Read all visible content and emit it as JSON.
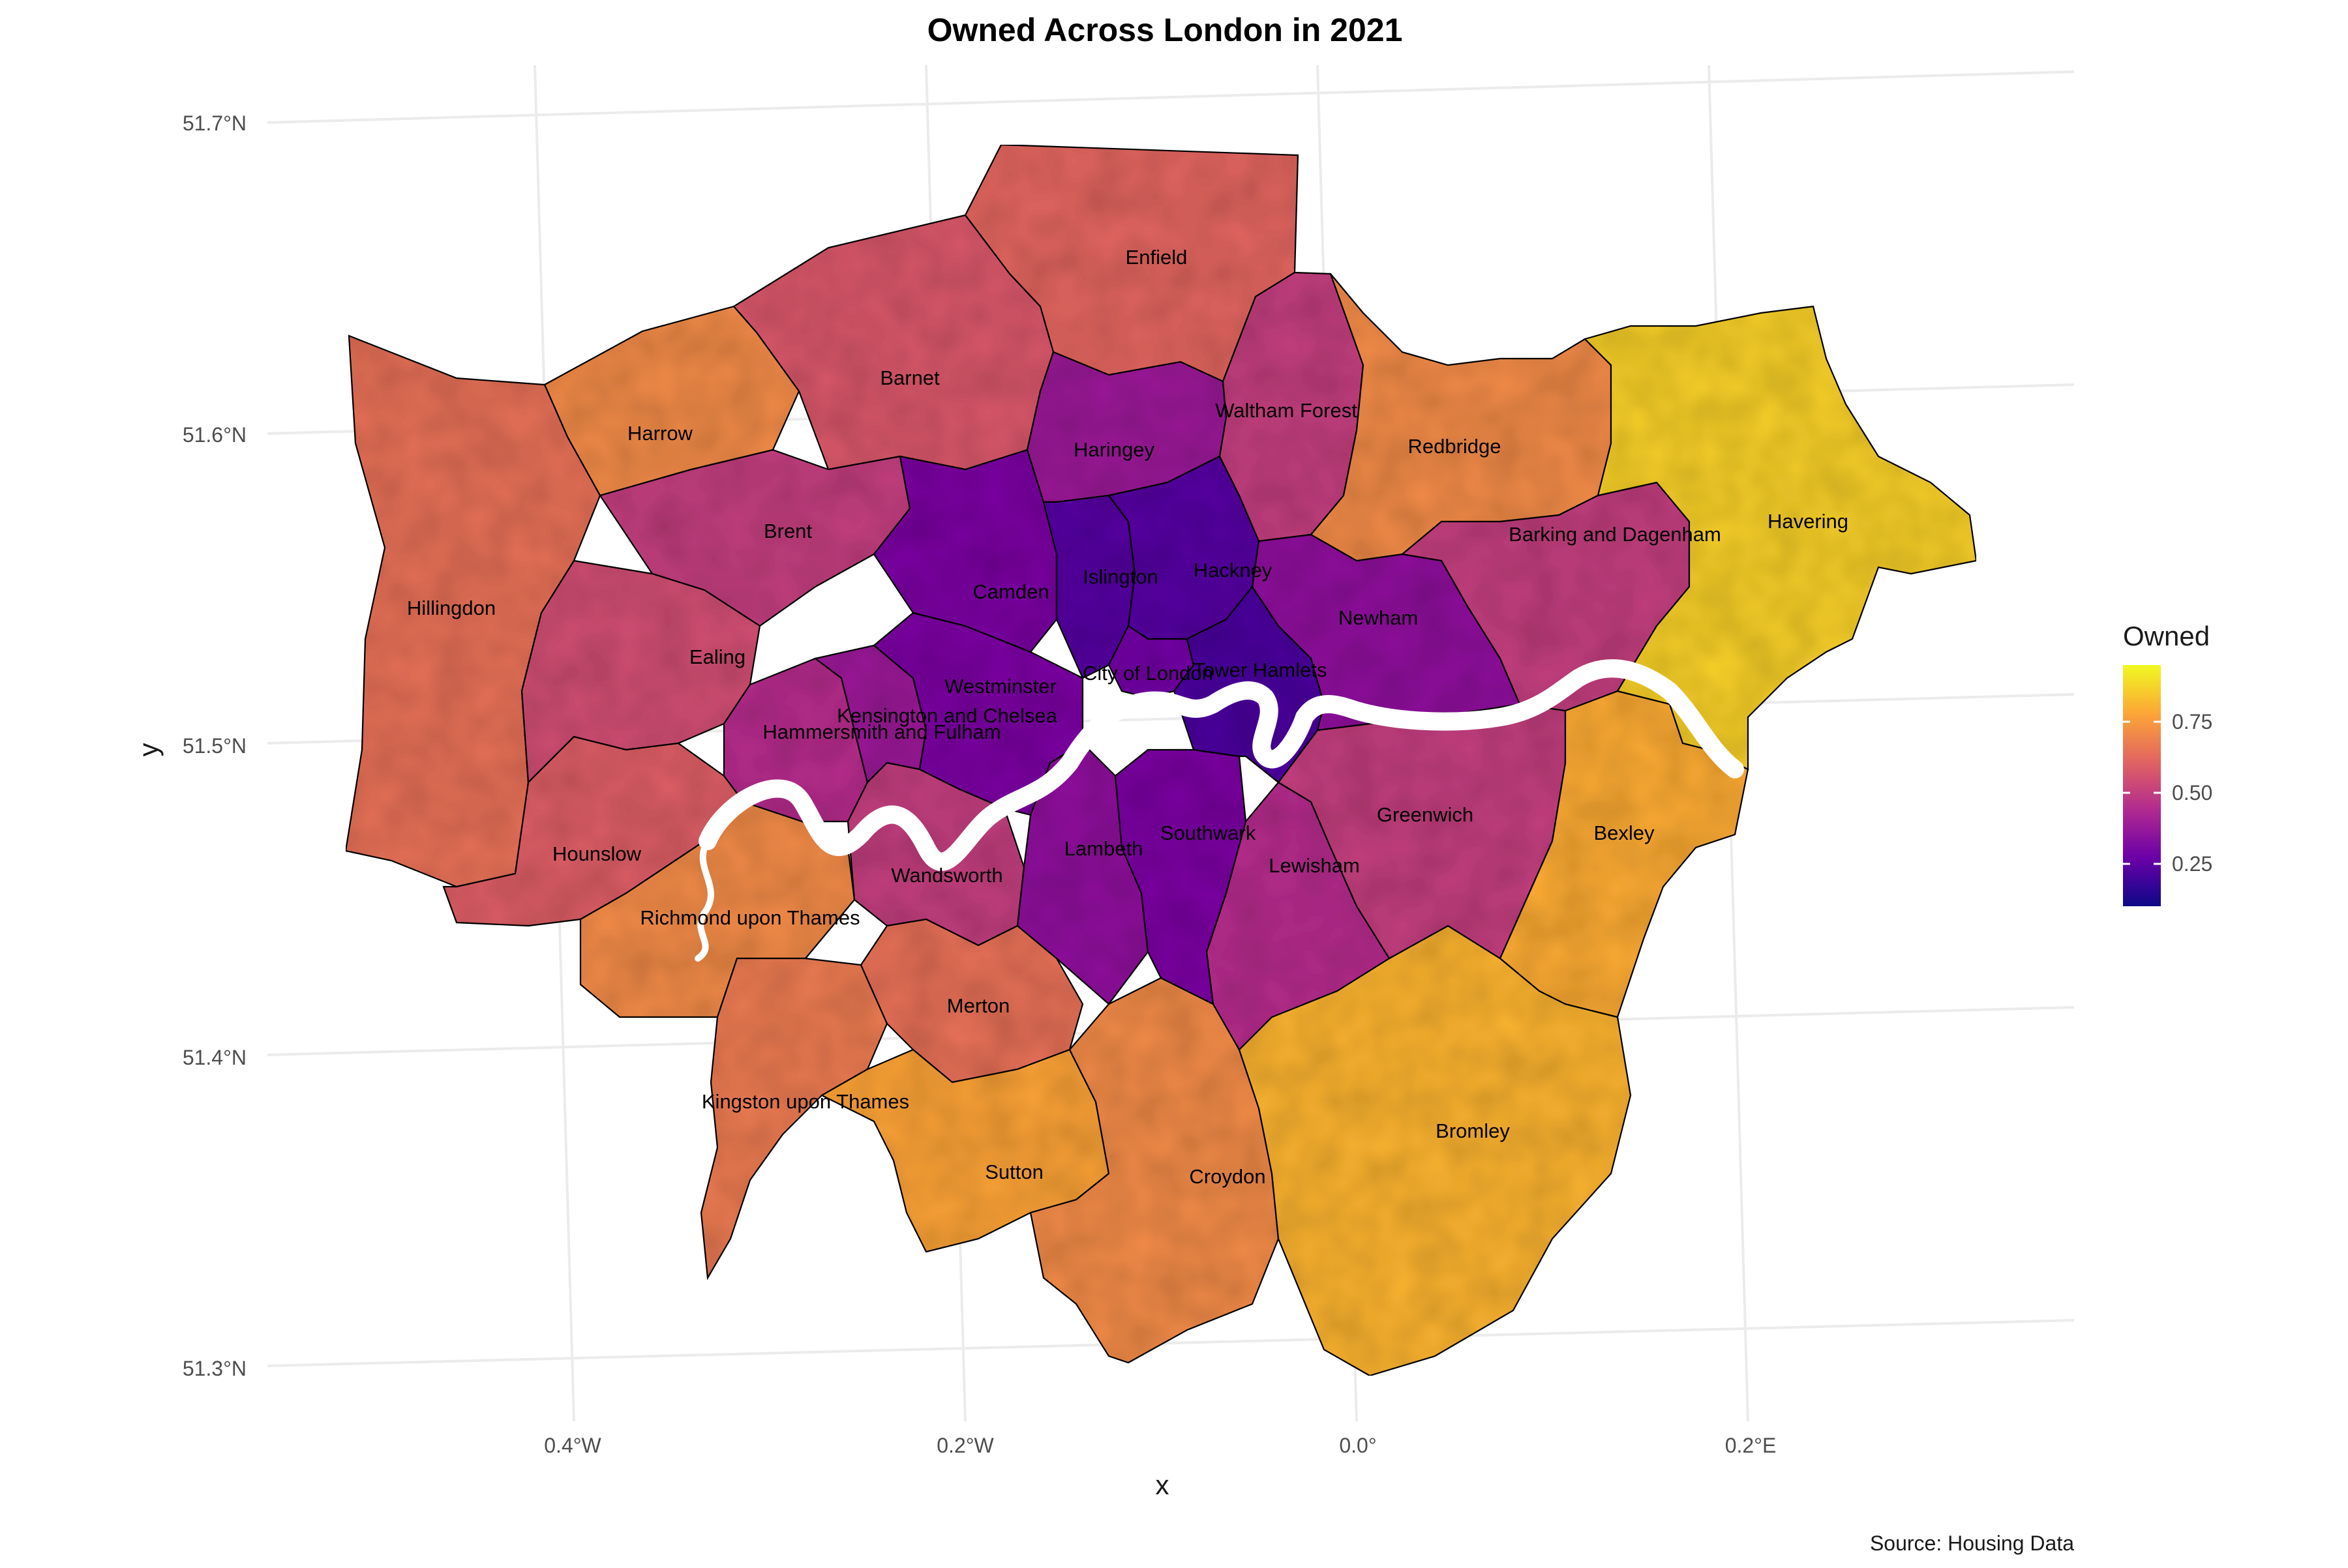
{
  "title": "Owned Across London in 2021",
  "caption": "Source: Housing Data",
  "x_axis": {
    "title": "x",
    "ticks": [
      "0.4°W",
      "0.2°W",
      "0.0°",
      "0.2°E"
    ]
  },
  "y_axis": {
    "title": "y",
    "ticks": [
      "51.7°N",
      "51.6°N",
      "51.5°N",
      "51.4°N",
      "51.3°N"
    ]
  },
  "legend": {
    "title": "Owned",
    "ticks": [
      "0.75",
      "0.50",
      "0.25"
    ],
    "colors": [
      "#0d0887",
      "#6a00a8",
      "#b12a90",
      "#e16462",
      "#fca636",
      "#f0f921"
    ]
  },
  "colors": {
    "river": "#ffffff",
    "border": "#000000",
    "grid": "#ebebeb",
    "low": "#0d0887",
    "high": "#f0f921"
  },
  "map_data": {
    "variable": "Owned",
    "year": "2021",
    "boroughs": [
      {
        "name": "Enfield",
        "owned": 0.62
      },
      {
        "name": "Barnet",
        "owned": 0.58
      },
      {
        "name": "Waltham Forest",
        "owned": 0.5
      },
      {
        "name": "Haringey",
        "owned": 0.38
      },
      {
        "name": "Harrow",
        "owned": 0.72
      },
      {
        "name": "Redbridge",
        "owned": 0.72
      },
      {
        "name": "Havering",
        "owned": 0.88
      },
      {
        "name": "Barking and Dagenham",
        "owned": 0.5
      },
      {
        "name": "Brent",
        "owned": 0.5
      },
      {
        "name": "Hillingdon",
        "owned": 0.65
      },
      {
        "name": "Camden",
        "owned": 0.3
      },
      {
        "name": "Islington",
        "owned": 0.22
      },
      {
        "name": "Hackney",
        "owned": 0.22
      },
      {
        "name": "Newham",
        "owned": 0.35
      },
      {
        "name": "Ealing",
        "owned": 0.55
      },
      {
        "name": "City of London",
        "owned": 0.28
      },
      {
        "name": "Tower Hamlets",
        "owned": 0.2
      },
      {
        "name": "Westminster",
        "owned": 0.3
      },
      {
        "name": "Kensington and Chelsea",
        "owned": 0.38
      },
      {
        "name": "Hammersmith and Fulham",
        "owned": 0.45
      },
      {
        "name": "Hounslow",
        "owned": 0.6
      },
      {
        "name": "Greenwich",
        "owned": 0.5
      },
      {
        "name": "Bexley",
        "owned": 0.8
      },
      {
        "name": "Southwark",
        "owned": 0.3
      },
      {
        "name": "Lambeth",
        "owned": 0.35
      },
      {
        "name": "Wandsworth",
        "owned": 0.5
      },
      {
        "name": "Lewisham",
        "owned": 0.45
      },
      {
        "name": "Richmond upon Thames",
        "owned": 0.72
      },
      {
        "name": "Merton",
        "owned": 0.65
      },
      {
        "name": "Kingston upon Thames",
        "owned": 0.68
      },
      {
        "name": "Sutton",
        "owned": 0.78
      },
      {
        "name": "Croydon",
        "owned": 0.72
      },
      {
        "name": "Bromley",
        "owned": 0.82
      }
    ]
  }
}
